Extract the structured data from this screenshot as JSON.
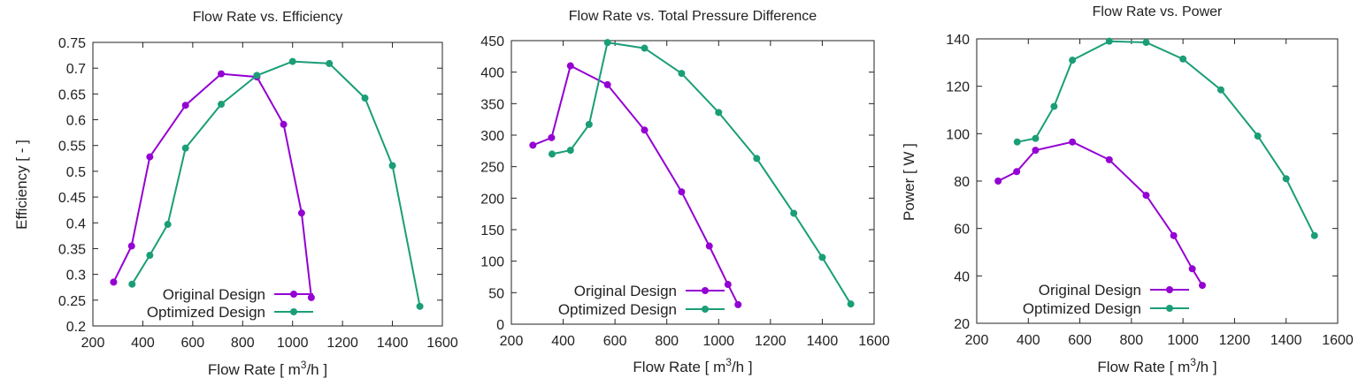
{
  "colors": {
    "original": "#9400d3",
    "optimized": "#1a9e77",
    "axis": "#222222"
  },
  "chart_data": [
    {
      "type": "line",
      "title": "Flow Rate  vs. Efficiency",
      "xlabel": "Flow Rate [ m",
      "xlabel_sup": "3",
      "xlabel_tail": "/h ]",
      "ylabel": "Efficiency [ - ]",
      "xlim": [
        200,
        1600
      ],
      "ylim": [
        0.2,
        0.75
      ],
      "xticks": [
        "200",
        "400",
        "600",
        "800",
        "1000",
        "1200",
        "1400",
        "1600"
      ],
      "yticks": [
        "0.2",
        "0.25",
        "0.3",
        "0.35",
        "0.4",
        "0.45",
        "0.5",
        "0.55",
        "0.6",
        "0.65",
        "0.7",
        "0.75"
      ],
      "legend_position": "bottom-left",
      "series": [
        {
          "name": "Original Design",
          "color": "#9400d3",
          "x": [
            283,
            355,
            428,
            571,
            714,
            857,
            964,
            1036,
            1075
          ],
          "y": [
            0.285,
            0.355,
            0.528,
            0.628,
            0.689,
            0.683,
            0.591,
            0.419,
            0.255
          ]
        },
        {
          "name": "Optimized Design",
          "color": "#1a9e77",
          "x": [
            357,
            428,
            500,
            571,
            714,
            857,
            1000,
            1147,
            1290,
            1400,
            1510
          ],
          "y": [
            0.281,
            0.337,
            0.397,
            0.545,
            0.63,
            0.686,
            0.713,
            0.709,
            0.642,
            0.511,
            0.238
          ]
        }
      ]
    },
    {
      "type": "line",
      "title": "Flow Rate  vs. Total Pressure Difference",
      "xlabel": "Flow Rate [ m",
      "xlabel_sup": "3",
      "xlabel_tail": "/h ]",
      "ylabel": "",
      "xlim": [
        200,
        1600
      ],
      "ylim": [
        0,
        450
      ],
      "xticks": [
        "200",
        "400",
        "600",
        "800",
        "1000",
        "1200",
        "1400",
        "1600"
      ],
      "yticks": [
        "0",
        "50",
        "100",
        "150",
        "200",
        "250",
        "300",
        "350",
        "400",
        "450"
      ],
      "legend_position": "bottom-left",
      "series": [
        {
          "name": "Original Design",
          "color": "#9400d3",
          "x": [
            283,
            355,
            428,
            571,
            714,
            857,
            964,
            1036,
            1075
          ],
          "y": [
            284,
            296,
            410,
            380,
            308,
            210,
            124,
            63,
            31
          ]
        },
        {
          "name": "Optimized Design",
          "color": "#1a9e77",
          "x": [
            357,
            428,
            500,
            571,
            714,
            857,
            1000,
            1147,
            1290,
            1400,
            1510
          ],
          "y": [
            270,
            276,
            317,
            447,
            438,
            398,
            336,
            263,
            176,
            106,
            32
          ]
        }
      ]
    },
    {
      "type": "line",
      "title": "Flow Rate  vs. Power",
      "xlabel": "Flow Rate [ m",
      "xlabel_sup": "3",
      "xlabel_tail": "/h ]",
      "ylabel": "Power [ W ]",
      "xlim": [
        200,
        1600
      ],
      "ylim": [
        20,
        140
      ],
      "xticks": [
        "200",
        "400",
        "600",
        "800",
        "1000",
        "1200",
        "1400",
        "1600"
      ],
      "yticks": [
        "20",
        "40",
        "60",
        "80",
        "100",
        "120",
        "140"
      ],
      "legend_position": "bottom-left",
      "series": [
        {
          "name": "Original Design",
          "color": "#9400d3",
          "x": [
            283,
            355,
            428,
            571,
            714,
            857,
            964,
            1036,
            1075
          ],
          "y": [
            80,
            84,
            93,
            96.5,
            89,
            74,
            57,
            43,
            36
          ]
        },
        {
          "name": "Optimized Design",
          "color": "#1a9e77",
          "x": [
            357,
            428,
            500,
            571,
            714,
            857,
            1000,
            1147,
            1290,
            1400,
            1510
          ],
          "y": [
            96.5,
            98,
            111.5,
            131,
            139,
            138.5,
            131.5,
            118.5,
            99,
            81,
            57
          ]
        }
      ]
    }
  ]
}
